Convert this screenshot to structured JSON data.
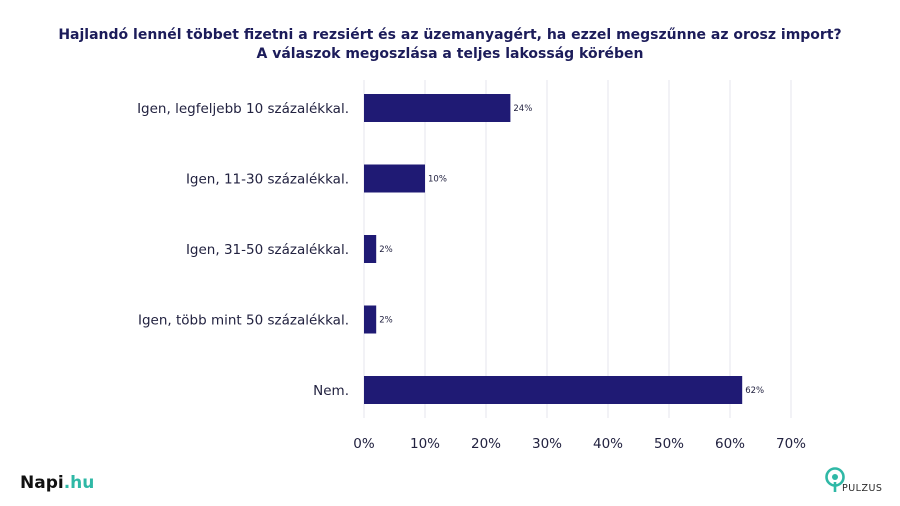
{
  "title": {
    "line1": "Hajlandó lennél többet fizetni a rezsiért és az üzemanyagért, ha ezzel megszűnne az orosz import?",
    "line2": "A válaszok megoszlása a teljes lakosság körében"
  },
  "chart_data": {
    "type": "bar",
    "orientation": "horizontal",
    "categories": [
      "Igen, legfeljebb 10 százalékkal.",
      "Igen, 11-30 százalékkal.",
      "Igen, 31-50 százalékkal.",
      "Igen, több mint 50 százalékkal.",
      "Nem."
    ],
    "values": [
      24,
      10,
      2,
      2,
      62
    ],
    "data_labels": [
      "24%",
      "10%",
      "2%",
      "2%",
      "62%"
    ],
    "xlim": [
      0,
      70
    ],
    "x_ticks": [
      0,
      10,
      20,
      30,
      40,
      50,
      60,
      70
    ],
    "x_tick_labels": [
      "0%",
      "10%",
      "20%",
      "30%",
      "40%",
      "50%",
      "60%",
      "70%"
    ],
    "grid": "vertical",
    "bar_color": "#1f1a74"
  },
  "branding": {
    "left_logo_main": "Napi",
    "left_logo_accent": ".hu",
    "right_logo": "PULZUS"
  }
}
